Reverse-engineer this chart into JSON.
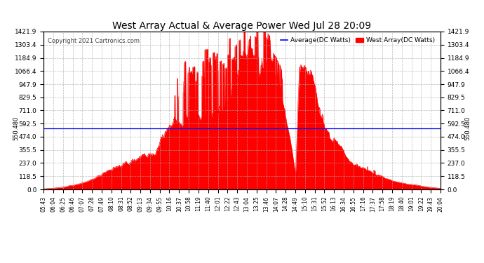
{
  "title": "West Array Actual & Average Power Wed Jul 28 20:09",
  "copyright": "Copyright 2021 Cartronics.com",
  "legend_avg": "Average(DC Watts)",
  "legend_west": "West Array(DC Watts)",
  "avg_value": 550.48,
  "y_ticks": [
    0.0,
    118.5,
    237.0,
    355.5,
    474.0,
    592.5,
    711.0,
    829.5,
    947.9,
    1066.4,
    1184.9,
    1303.4,
    1421.9
  ],
  "y_max": 1421.9,
  "y_min": 0.0,
  "background_color": "#ffffff",
  "grid_color": "#aaaaaa",
  "fill_color": "#ff0000",
  "line_color": "#ff0000",
  "avg_line_color": "#0000ff",
  "title_color": "#000000",
  "x_labels": [
    "05:43",
    "06:04",
    "06:25",
    "06:46",
    "07:07",
    "07:28",
    "07:49",
    "08:10",
    "08:31",
    "08:52",
    "09:13",
    "09:34",
    "09:55",
    "10:16",
    "10:37",
    "10:58",
    "11:19",
    "11:40",
    "12:01",
    "12:22",
    "12:43",
    "13:04",
    "13:25",
    "13:46",
    "14:07",
    "14:28",
    "14:49",
    "15:10",
    "15:31",
    "15:52",
    "16:13",
    "16:34",
    "16:55",
    "17:16",
    "17:37",
    "17:58",
    "18:19",
    "18:40",
    "19:01",
    "19:22",
    "19:43",
    "20:04"
  ],
  "ctrl_t": [
    0.0,
    0.02,
    0.05,
    0.09,
    0.13,
    0.17,
    0.21,
    0.25,
    0.28,
    0.31,
    0.335,
    0.355,
    0.375,
    0.395,
    0.415,
    0.435,
    0.455,
    0.475,
    0.495,
    0.515,
    0.53,
    0.545,
    0.56,
    0.575,
    0.59,
    0.6,
    0.615,
    0.625,
    0.635,
    0.645,
    0.66,
    0.675,
    0.685,
    0.695,
    0.71,
    0.725,
    0.74,
    0.755,
    0.77,
    0.79,
    0.82,
    0.86,
    0.9,
    0.94,
    0.97,
    1.0
  ],
  "ctrl_y": [
    5,
    10,
    20,
    50,
    100,
    180,
    280,
    400,
    520,
    620,
    700,
    780,
    830,
    870,
    900,
    940,
    980,
    1020,
    1060,
    1080,
    1100,
    1080,
    1050,
    980,
    900,
    780,
    500,
    300,
    100,
    900,
    880,
    820,
    750,
    600,
    450,
    350,
    300,
    250,
    200,
    160,
    120,
    80,
    55,
    35,
    20,
    10
  ]
}
